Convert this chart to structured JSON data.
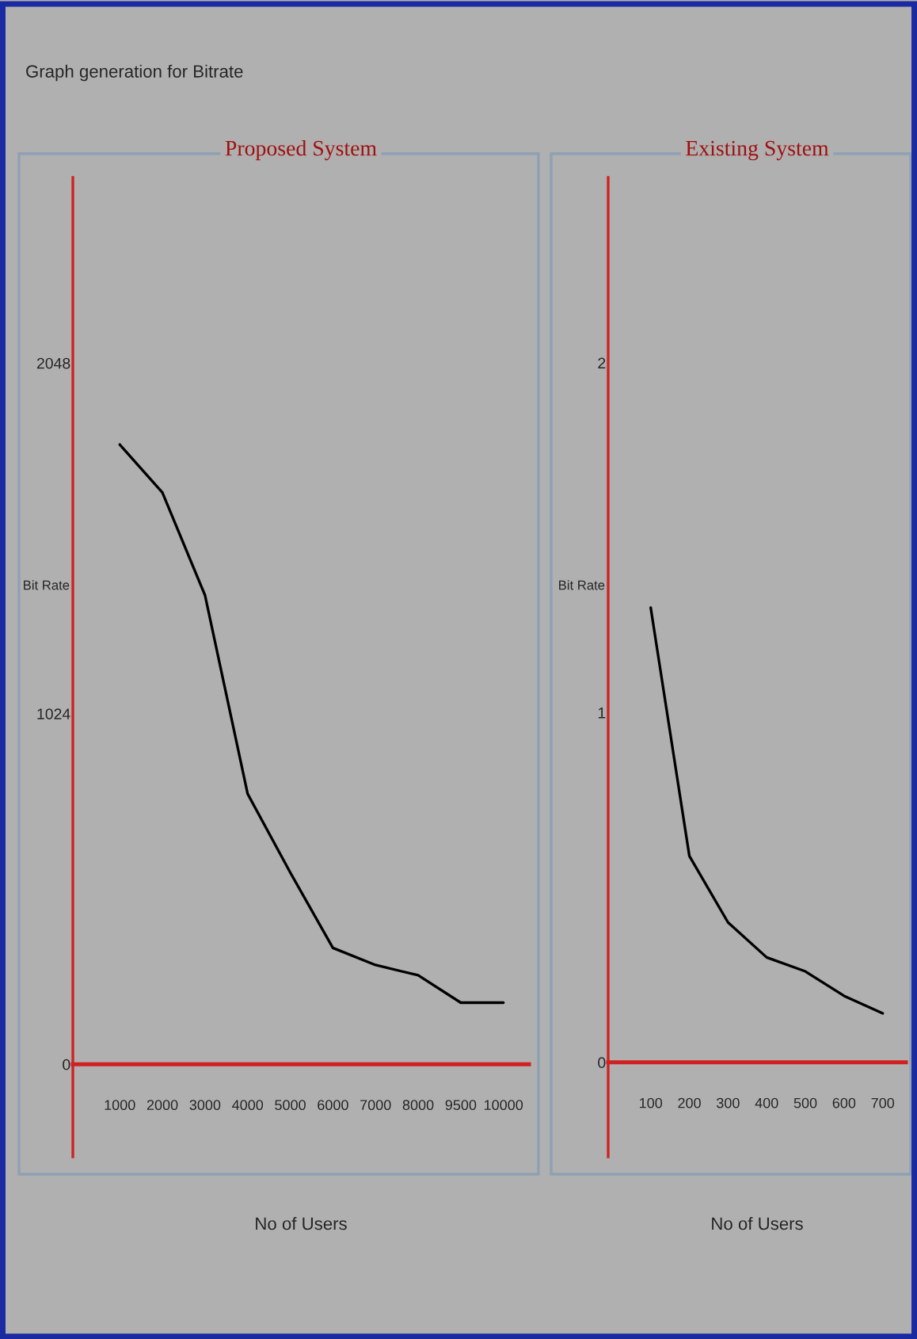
{
  "chart_data": [
    {
      "type": "line",
      "title": "Proposed System",
      "xlabel": "No of Users",
      "ylabel": "Bit Rate",
      "annotations": [
        "Graph generation for Bitrate"
      ],
      "categories": [
        "1000",
        "2000",
        "3000",
        "4000",
        "5000",
        "6000",
        "7000",
        "8000",
        "9500",
        "10000"
      ],
      "series": [
        {
          "color": "#000000",
          "values": [
            1810,
            1670,
            1370,
            790,
            560,
            340,
            290,
            260,
            180,
            180
          ]
        }
      ],
      "ylim": [
        -270,
        2590
      ],
      "yticks": [
        0,
        1024,
        2048
      ],
      "grid": false,
      "legend": false,
      "marker": "none",
      "line_style": "solid"
    },
    {
      "type": "line",
      "title": "Existing System",
      "xlabel": "No of Users",
      "ylabel": "Bit Rate",
      "categories": [
        "100",
        "200",
        "300",
        "400",
        "500",
        "600",
        "700"
      ],
      "series": [
        {
          "color": "#000000",
          "values": [
            1.3,
            0.59,
            0.4,
            0.3,
            0.26,
            0.19,
            0.14
          ]
        }
      ],
      "ylim": [
        -0.27,
        2.53
      ],
      "yticks": [
        0,
        1,
        2
      ],
      "grid": false,
      "legend": false,
      "marker": "none",
      "line_style": "solid"
    }
  ]
}
